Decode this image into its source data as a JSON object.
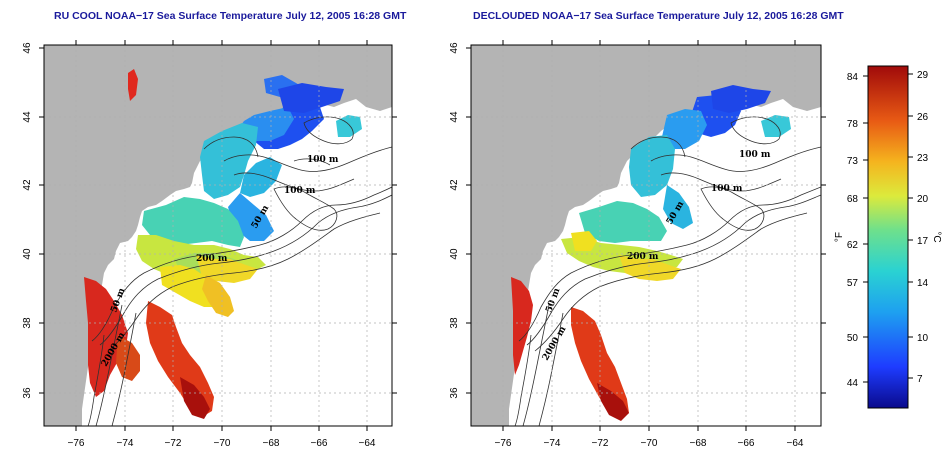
{
  "titles": {
    "left": "RU COOL NOAA−17 Sea Surface Temperature July 12, 2005 16:28 GMT",
    "right": "DECLOUDED NOAA−17 Sea Surface Temperature July 12, 2005 16:28 GMT"
  },
  "axes": {
    "lon_ticks": [
      "−76",
      "−74",
      "−72",
      "−70",
      "−68",
      "−66",
      "−64"
    ],
    "lat_ticks": [
      "46",
      "44",
      "42",
      "40",
      "38",
      "36"
    ]
  },
  "contour_labels": {
    "left": [
      "100 m",
      "100 m",
      "50 m",
      "200 m",
      "50 m",
      "2000 m"
    ],
    "right": [
      "100 m",
      "100 m",
      "50 m",
      "200 m",
      "50 m",
      "2000 m"
    ]
  },
  "colorbar": {
    "unit_f": "°F",
    "unit_c": "°C",
    "fahrenheit_ticks": [
      "84",
      "78",
      "73",
      "68",
      "62",
      "57",
      "50",
      "44"
    ],
    "celsius_ticks": [
      "29",
      "26",
      "23",
      "20",
      "17",
      "14",
      "10",
      "7"
    ]
  },
  "colors": {
    "land": "#b4b4b4",
    "ocean": "#ffffff",
    "grid": "#b0b0b0",
    "title": "#1a1a9c"
  }
}
